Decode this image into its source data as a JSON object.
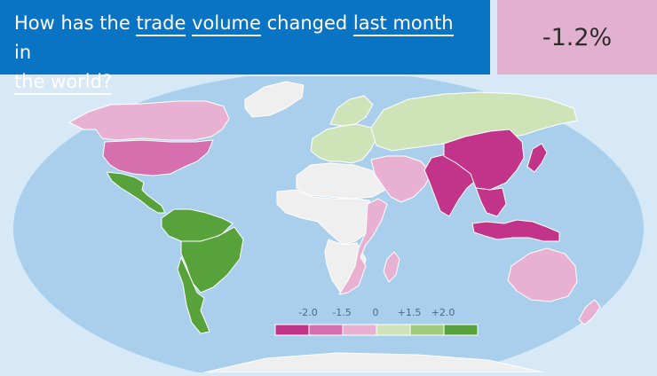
{
  "header": {
    "question_parts": [
      "How has the ",
      "trade",
      " ",
      "volume",
      " changed ",
      "last month",
      " in ",
      "the world?"
    ],
    "value": "-1.2%"
  },
  "colors": {
    "header_bg": "#0a74c4",
    "value_bg": "#e3b1d0",
    "ocean": "#a9cfec",
    "background": "#d7e9f7",
    "no_data": "#efefef",
    "scale": [
      "#c2338a",
      "#d56fae",
      "#e8b1d2",
      "#cfe3b8",
      "#9fcb7d",
      "#58a23c"
    ]
  },
  "legend": {
    "labels": [
      "-2.0",
      "-1.5",
      "0",
      "+1.5",
      "+2.0"
    ]
  },
  "regions": [
    {
      "id": "north-america-north",
      "class": -1
    },
    {
      "id": "greenland",
      "class": null
    },
    {
      "id": "usa",
      "class": -2
    },
    {
      "id": "mexico-central-america",
      "class": 3
    },
    {
      "id": "south-america-north",
      "class": 3
    },
    {
      "id": "south-america-brazil",
      "class": 3
    },
    {
      "id": "south-america-south",
      "class": 3
    },
    {
      "id": "europe-west",
      "class": 1
    },
    {
      "id": "scandinavia",
      "class": 1
    },
    {
      "id": "russia",
      "class": 1
    },
    {
      "id": "north-africa",
      "class": null
    },
    {
      "id": "central-africa",
      "class": null
    },
    {
      "id": "southern-africa",
      "class": null
    },
    {
      "id": "east-africa",
      "class": -1
    },
    {
      "id": "madagascar",
      "class": -1
    },
    {
      "id": "middle-east",
      "class": -1
    },
    {
      "id": "india",
      "class": -3
    },
    {
      "id": "china",
      "class": -3
    },
    {
      "id": "japan",
      "class": -3
    },
    {
      "id": "southeast-asia",
      "class": -3
    },
    {
      "id": "indonesia",
      "class": -3
    },
    {
      "id": "australia",
      "class": -1
    },
    {
      "id": "new-zealand",
      "class": -1
    },
    {
      "id": "antarctica",
      "class": null
    }
  ]
}
